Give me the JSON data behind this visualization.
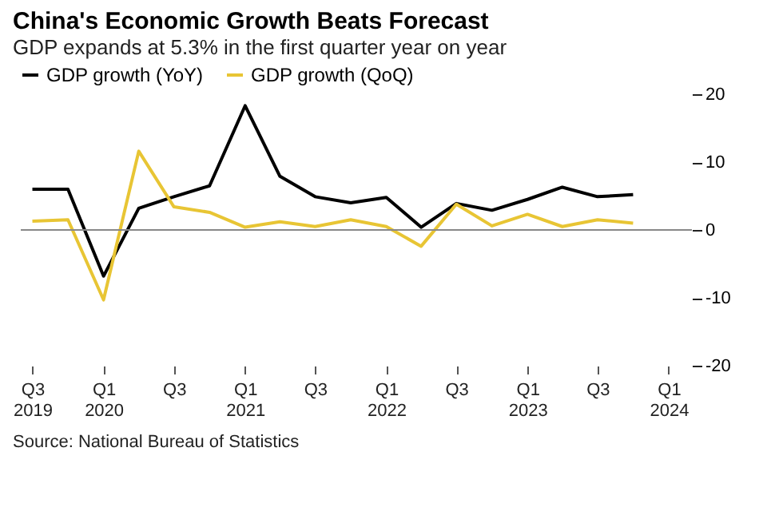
{
  "chart_data": {
    "type": "line",
    "title": "China's Economic Growth Beats Forecast",
    "subtitle": "GDP expands at 5.3% in the first quarter year on year",
    "x": [
      "2019-07",
      "2019-10",
      "2020-01",
      "2020-04",
      "2020-07",
      "2020-10",
      "2021-01",
      "2021-04",
      "2021-07",
      "2021-10",
      "2022-01",
      "2022-04",
      "2022-07",
      "2022-10",
      "2023-01",
      "2023-04",
      "2023-07",
      "2023-10"
    ],
    "series": [
      {
        "name": "GDP growth (YoY)",
        "color": "#000000",
        "values": [
          6.0,
          6.0,
          -6.8,
          3.2,
          4.9,
          6.5,
          18.3,
          7.9,
          4.9,
          4.0,
          4.8,
          0.4,
          3.9,
          2.9,
          4.5,
          6.3,
          4.9,
          5.2
        ]
      },
      {
        "name": "GDP growth (QoQ)",
        "color": "#e8c534",
        "values": [
          1.3,
          1.5,
          -10.3,
          11.6,
          3.4,
          2.6,
          0.4,
          1.2,
          0.5,
          1.5,
          0.5,
          -2.4,
          3.8,
          0.6,
          2.3,
          0.5,
          1.5,
          1.0
        ]
      }
    ],
    "xlim": [
      "2019-06",
      "2024-03"
    ],
    "xticks": [
      {
        "value": "2019-07",
        "label": "Q3 2019"
      },
      {
        "value": "2020-01",
        "label": "Q1 2020"
      },
      {
        "value": "2020-07",
        "label": "Q3"
      },
      {
        "value": "2021-01",
        "label": "Q1 2021"
      },
      {
        "value": "2021-07",
        "label": "Q3"
      },
      {
        "value": "2022-01",
        "label": "Q1 2022"
      },
      {
        "value": "2022-07",
        "label": "Q3"
      },
      {
        "value": "2023-01",
        "label": "Q1 2023"
      },
      {
        "value": "2023-07",
        "label": "Q3"
      },
      {
        "value": "2024-01",
        "label": "Q1 2024"
      }
    ],
    "ylim": [
      -20,
      20
    ],
    "yticks": [
      -20,
      -10,
      0,
      10,
      20
    ],
    "ref_lines": [
      {
        "axis": "y",
        "value": 0,
        "color": "#888888"
      }
    ],
    "grid": false,
    "legend": "top left",
    "marker": "none",
    "line_style": "solid",
    "annotations": [
      "Source: National Bureau of Statistics"
    ]
  }
}
